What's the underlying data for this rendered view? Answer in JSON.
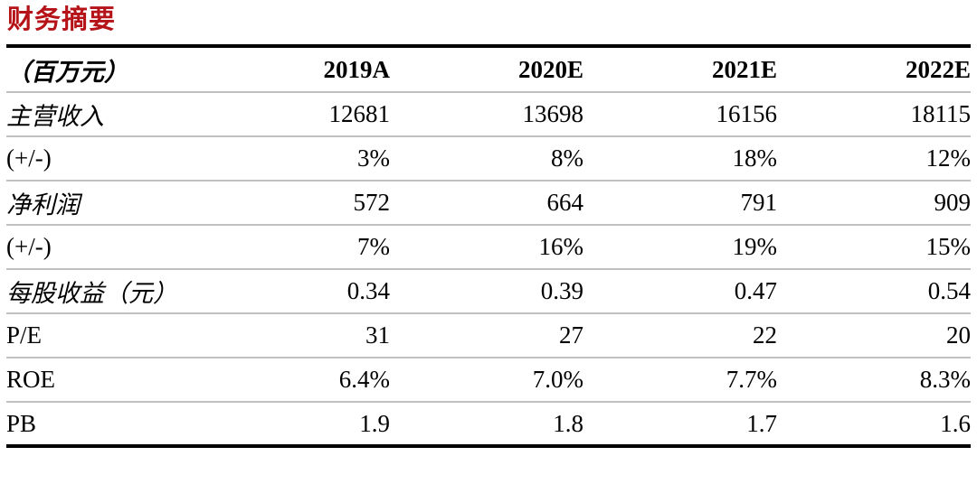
{
  "title": "财务摘要",
  "colors": {
    "title_red": "#b51318",
    "border_dark": "#000000",
    "border_light": "#c0c0c0"
  },
  "table": {
    "unit_header": "（百万元）",
    "columns": [
      "2019A",
      "2020E",
      "2021E",
      "2022E"
    ],
    "rows": [
      {
        "label": "主营收入",
        "values": [
          "12681",
          "13698",
          "16156",
          "18115"
        ]
      },
      {
        "label": "(+/-)",
        "values": [
          "3%",
          "8%",
          "18%",
          "12%"
        ]
      },
      {
        "label": "净利润",
        "values": [
          "572",
          "664",
          "791",
          "909"
        ]
      },
      {
        "label": "(+/-)",
        "values": [
          "7%",
          "16%",
          "19%",
          "15%"
        ]
      },
      {
        "label": "每股收益（元）",
        "values": [
          "0.34",
          "0.39",
          "0.47",
          "0.54"
        ]
      },
      {
        "label": "P/E",
        "values": [
          "31",
          "27",
          "22",
          "20"
        ]
      },
      {
        "label": "ROE",
        "values": [
          "6.4%",
          "7.0%",
          "7.7%",
          "8.3%"
        ]
      },
      {
        "label": "PB",
        "values": [
          "1.9",
          "1.8",
          "1.7",
          "1.6"
        ]
      }
    ]
  }
}
